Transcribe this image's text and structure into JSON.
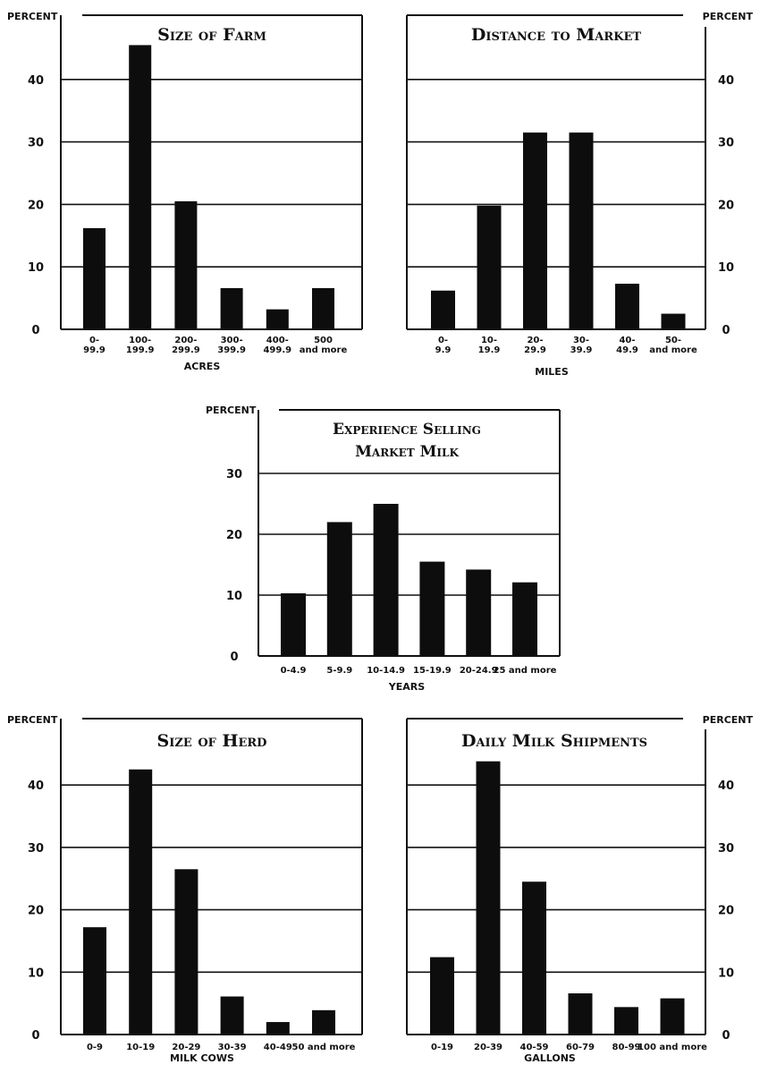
{
  "charts": {
    "farm": {
      "title": "Size of Farm",
      "ylabel": "PERCENT",
      "xlabel": "ACRES",
      "y_ticks": [
        "0",
        "10",
        "20",
        "30",
        "40"
      ],
      "categories": [
        [
          "0-",
          "99.9"
        ],
        [
          "100-",
          "199.9"
        ],
        [
          "200-",
          "299.9"
        ],
        [
          "300-",
          "399.9"
        ],
        [
          "400-",
          "499.9"
        ],
        [
          "500",
          "and more"
        ]
      ]
    },
    "market": {
      "title": "Distance to Market",
      "ylabel": "PERCENT",
      "xlabel": "MILES",
      "y_ticks": [
        "0",
        "10",
        "20",
        "30",
        "40"
      ],
      "categories": [
        [
          "0-",
          "9.9"
        ],
        [
          "10-",
          "19.9"
        ],
        [
          "20-",
          "29.9"
        ],
        [
          "30-",
          "39.9"
        ],
        [
          "40-",
          "49.9"
        ],
        [
          "50-",
          "and more"
        ]
      ]
    },
    "experience": {
      "title_lines": [
        "Experience Selling",
        "Market Milk"
      ],
      "ylabel": "PERCENT",
      "xlabel": "YEARS",
      "y_ticks": [
        "0",
        "10",
        "20",
        "30"
      ],
      "categories": [
        [
          "0-4.9"
        ],
        [
          "5-9.9"
        ],
        [
          "10-14.9"
        ],
        [
          "15-19.9"
        ],
        [
          "20-24.9"
        ],
        [
          "25 and more"
        ]
      ]
    },
    "herd": {
      "title": "Size of Herd",
      "ylabel": "PERCENT",
      "xlabel": "MILK COWS",
      "y_ticks": [
        "0",
        "10",
        "20",
        "30",
        "40"
      ],
      "categories": [
        [
          "0-9"
        ],
        [
          "10-19"
        ],
        [
          "20-29"
        ],
        [
          "30-39"
        ],
        [
          "40-49"
        ],
        [
          "50 and more"
        ]
      ]
    },
    "shipments": {
      "title": "Daily Milk Shipments",
      "ylabel": "PERCENT",
      "xlabel": "GALLONS",
      "y_ticks": [
        "0",
        "10",
        "20",
        "30",
        "40"
      ],
      "categories": [
        [
          "0-19"
        ],
        [
          "20-39"
        ],
        [
          "40-59"
        ],
        [
          "60-79"
        ],
        [
          "80-99"
        ],
        [
          "100 and more"
        ]
      ]
    }
  },
  "chart_data": [
    {
      "type": "bar",
      "title": "Size of Farm",
      "xlabel": "ACRES",
      "ylabel": "PERCENT",
      "categories": [
        "0-99.9",
        "100-199.9",
        "200-299.9",
        "300-399.9",
        "400-499.9",
        "500 and more"
      ],
      "values": [
        16.2,
        45.5,
        20.5,
        6.6,
        3.2,
        6.6
      ],
      "ylim": [
        0,
        47.5
      ],
      "grid": true
    },
    {
      "type": "bar",
      "title": "Distance to Market",
      "xlabel": "MILES",
      "ylabel": "PERCENT",
      "categories": [
        "0-9.9",
        "10-19.9",
        "20-29.9",
        "30-39.9",
        "40-49.9",
        "50-and more"
      ],
      "values": [
        6.2,
        19.8,
        31.5,
        31.5,
        7.3,
        2.5
      ],
      "ylim": [
        0,
        47.5
      ],
      "grid": true
    },
    {
      "type": "bar",
      "title": "Experience Selling Market Milk",
      "xlabel": "YEARS",
      "ylabel": "PERCENT",
      "categories": [
        "0-4.9",
        "5-9.9",
        "10-14.9",
        "15-19.9",
        "20-24.9",
        "25 and more"
      ],
      "values": [
        10.3,
        22.0,
        25.0,
        15.5,
        14.2,
        12.1
      ],
      "ylim": [
        0,
        33.5
      ],
      "grid": true
    },
    {
      "type": "bar",
      "title": "Size of Herd",
      "xlabel": "MILK COWS",
      "ylabel": "PERCENT",
      "categories": [
        "0-9",
        "10-19",
        "20-29",
        "30-39",
        "40-49",
        "50 and more"
      ],
      "values": [
        17.2,
        42.5,
        26.5,
        6.1,
        2.0,
        3.9
      ],
      "ylim": [
        0,
        47.5
      ],
      "grid": true
    },
    {
      "type": "bar",
      "title": "Daily Milk Shipments",
      "xlabel": "GALLONS",
      "ylabel": "PERCENT",
      "categories": [
        "0-19",
        "20-39",
        "40-59",
        "60-79",
        "80-99",
        "100 and more"
      ],
      "values": [
        12.4,
        43.8,
        24.5,
        6.6,
        4.4,
        5.8
      ],
      "ylim": [
        0,
        47.5
      ],
      "grid": true
    }
  ]
}
